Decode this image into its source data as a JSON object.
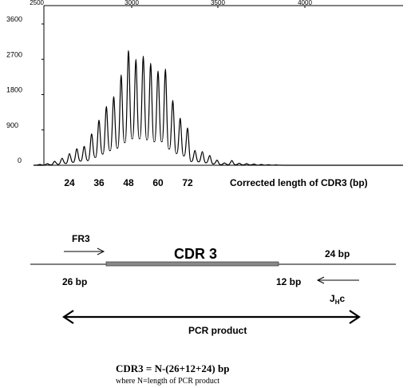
{
  "chart_data": {
    "type": "line",
    "xlabel": "Corrected length of CDR3 (bp)",
    "top_axis_ticks": [
      "2500",
      "3000",
      "3500",
      "4000"
    ],
    "y_ticks": [
      "3600",
      "2700",
      "1800",
      "900",
      "0"
    ],
    "ylim": [
      0,
      3600
    ],
    "bottom_axis_ticks": [
      "24",
      "36",
      "48",
      "60",
      "72"
    ],
    "grid": false,
    "x": [
      12,
      15,
      18,
      21,
      24,
      27,
      30,
      33,
      36,
      39,
      42,
      45,
      48,
      51,
      54,
      57,
      60,
      63,
      66,
      69,
      72,
      75,
      78,
      81,
      84,
      87,
      90,
      93,
      96,
      99,
      102,
      105,
      108
    ],
    "values": [
      20,
      40,
      100,
      180,
      300,
      420,
      480,
      800,
      1150,
      1500,
      1750,
      2300,
      2920,
      2700,
      2780,
      2600,
      2400,
      2450,
      1650,
      1200,
      950,
      380,
      350,
      250,
      130,
      60,
      120,
      50,
      40,
      30,
      20,
      15,
      10
    ]
  },
  "diagram": {
    "fr3_label": "FR3",
    "cdr3_label": "CDR 3",
    "left_bp": "26 bp",
    "mid_bp": "12 bp",
    "right_bp": "24 bp",
    "jhc_main": "J",
    "jhc_sub": "H",
    "jhc_tail": "c",
    "pcr_label": "PCR product"
  },
  "formula": {
    "line1": "CDR3 = N-(26+12+24) bp",
    "line2": "where N=length of PCR product"
  }
}
